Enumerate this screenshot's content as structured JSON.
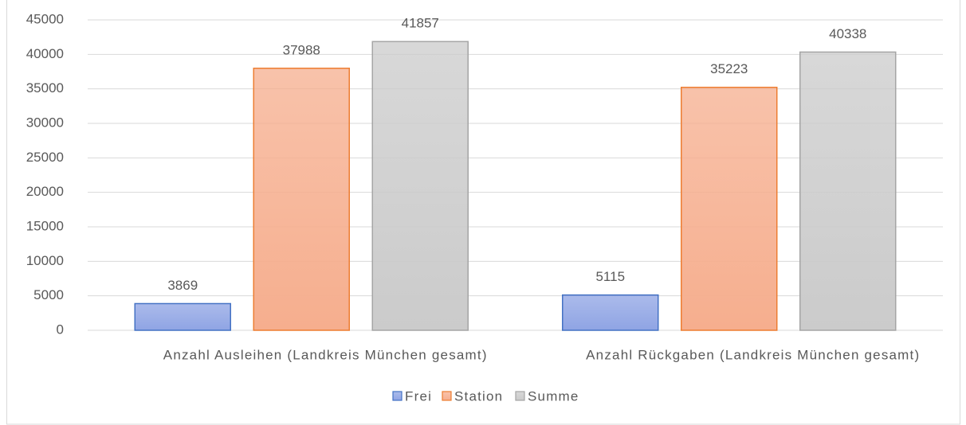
{
  "chart_data": {
    "type": "bar",
    "categories": [
      "Anzahl Ausleihen (Landkreis München gesamt)",
      "Anzahl Rückgaben (Landkreis München gesamt)"
    ],
    "series": [
      {
        "name": "Frei",
        "color": "#8fa4e4",
        "border_color": "#4472c4",
        "values": [
          3869,
          5115
        ]
      },
      {
        "name": "Station",
        "color": "#f6ae8e",
        "border_color": "#ed7d31",
        "values": [
          37988,
          35223
        ]
      },
      {
        "name": "Summe",
        "color": "#cbcbcb",
        "border_color": "#a5a5a5",
        "values": [
          41857,
          40338
        ]
      }
    ],
    "ylim": [
      0,
      45000
    ],
    "yticks": [
      0,
      5000,
      10000,
      15000,
      20000,
      25000,
      30000,
      35000,
      40000,
      45000
    ],
    "grid": true,
    "legend": "bottom"
  }
}
